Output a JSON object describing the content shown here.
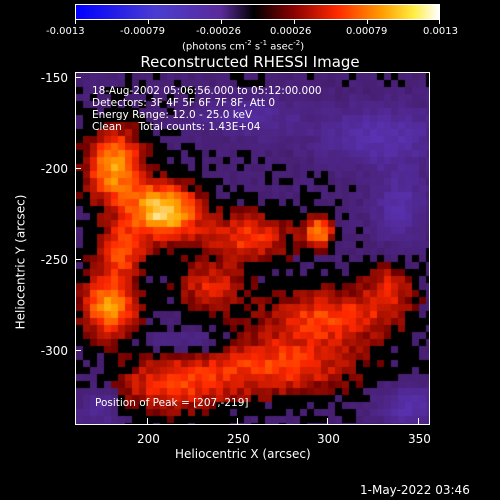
{
  "colorbar": {
    "ticks": [
      "-0.0013",
      "-0.00079",
      "-0.00026",
      "0.00026",
      "0.00079",
      "0.0013"
    ],
    "units_prefix": "(photons cm",
    "units_exp1": "-2",
    "units_mid": " s",
    "units_exp2": "-1",
    "units_mid2": " asec",
    "units_exp3": "-2",
    "units_suffix": ")"
  },
  "title": "Reconstructed RHESSI Image",
  "info": {
    "line1": "18-Aug-2002 05:06:56.000 to 05:12:00.000",
    "line2": "Detectors: 3F 4F 5F 6F 7F 8F, Att 0",
    "line3": "Energy Range: 12.0 - 25.0 keV",
    "line4": "Clean     Total counts: 1.43E+04"
  },
  "peak": "Position of Peak = [207,-219]",
  "axes": {
    "y_ticks": [
      "-150",
      "-200",
      "-250",
      "-300"
    ],
    "x_ticks": [
      "200",
      "250",
      "300",
      "350"
    ],
    "ylabel": "Heliocentric Y (arcsec)",
    "xlabel": "Heliocentric X (arcsec)",
    "x_range": [
      160,
      355
    ],
    "y_range": [
      -345,
      -147
    ]
  },
  "timestamp": "1-May-2022 03:46",
  "colors": {
    "negative_end": "#0000ff",
    "zero": "#000000",
    "mid": "#ff3300",
    "positive_end": "#ffffff"
  }
}
